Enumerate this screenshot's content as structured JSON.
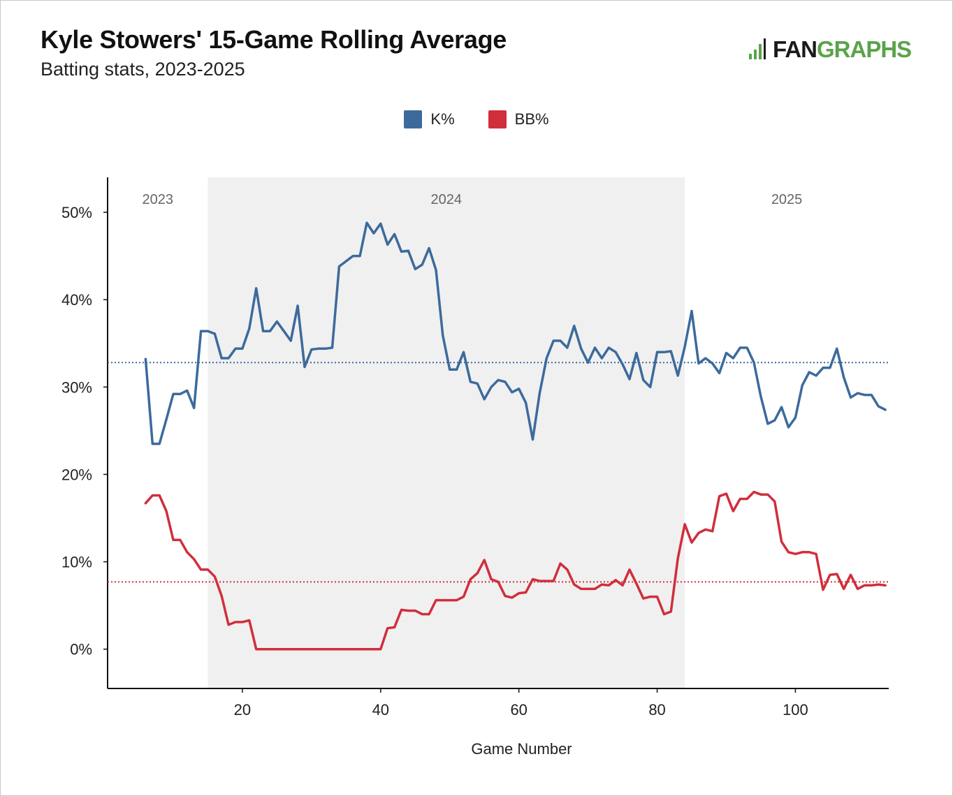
{
  "header": {
    "title": "Kyle Stowers' 15-Game Rolling Average",
    "subtitle": "Batting stats, 2023-2025",
    "logo_part1": "FAN",
    "logo_part2": "GRAPHS"
  },
  "colors": {
    "k_pct": "#3c6a9c",
    "bb_pct": "#d12e3b",
    "logo_green": "#5aa34a",
    "season_shade": "#f0f0f0"
  },
  "chart_data": {
    "type": "line",
    "title": "Kyle Stowers' 15-Game Rolling Average",
    "subtitle": "Batting stats, 2023-2025",
    "xlabel": "Game Number",
    "ylabel": "",
    "xlim": [
      0.5,
      113.5
    ],
    "ylim": [
      -4.5,
      54
    ],
    "x_ticks": [
      20,
      40,
      60,
      80,
      100
    ],
    "y_ticks": [
      0,
      10,
      20,
      30,
      40,
      50
    ],
    "y_tick_labels": [
      "0%",
      "10%",
      "20%",
      "30%",
      "40%",
      "50%"
    ],
    "legend_position": "top-center",
    "grid": false,
    "seasons": [
      {
        "label": "2023",
        "start": 0.5,
        "end": 15,
        "shaded": false
      },
      {
        "label": "2024",
        "start": 15,
        "end": 84,
        "shaded": true
      },
      {
        "label": "2025",
        "start": 84,
        "end": 113.5,
        "shaded": false
      }
    ],
    "x": [
      6,
      7,
      8,
      9,
      10,
      11,
      12,
      13,
      14,
      15,
      16,
      17,
      18,
      19,
      20,
      21,
      22,
      23,
      24,
      25,
      26,
      27,
      28,
      29,
      30,
      31,
      32,
      33,
      34,
      35,
      36,
      37,
      38,
      39,
      40,
      41,
      42,
      43,
      44,
      45,
      46,
      47,
      48,
      49,
      50,
      51,
      52,
      53,
      54,
      55,
      56,
      57,
      58,
      59,
      60,
      61,
      62,
      63,
      64,
      65,
      66,
      67,
      68,
      69,
      70,
      71,
      72,
      73,
      74,
      75,
      76,
      77,
      78,
      79,
      80,
      81,
      82,
      83,
      84,
      85,
      86,
      87,
      88,
      89,
      90,
      91,
      92,
      93,
      94,
      95,
      96,
      97,
      98,
      99,
      100,
      101,
      102,
      103,
      104,
      105,
      106,
      107,
      108,
      109,
      110,
      111,
      112,
      113
    ],
    "series": [
      {
        "name": "K%",
        "color": "#3c6a9c",
        "average": 32.8,
        "values": [
          33.2,
          23.5,
          23.5,
          26.3,
          29.2,
          29.2,
          29.6,
          27.6,
          36.4,
          36.4,
          36.1,
          33.3,
          33.3,
          34.4,
          34.4,
          36.7,
          41.3,
          36.4,
          36.4,
          37.5,
          36.4,
          35.3,
          39.3,
          32.3,
          34.3,
          34.4,
          34.4,
          34.5,
          43.8,
          44.4,
          45.0,
          45.0,
          48.8,
          47.6,
          48.7,
          46.3,
          47.5,
          45.5,
          45.6,
          43.5,
          44.0,
          45.9,
          43.4,
          35.9,
          32.0,
          32.0,
          34.0,
          30.6,
          30.4,
          28.6,
          30.0,
          30.8,
          30.6,
          29.4,
          29.8,
          28.2,
          24.0,
          29.3,
          33.3,
          35.3,
          35.3,
          34.5,
          37.0,
          34.4,
          32.8,
          34.5,
          33.3,
          34.5,
          34.0,
          32.6,
          30.9,
          33.9,
          30.8,
          30.0,
          34.0,
          34.0,
          34.1,
          31.3,
          34.6,
          38.7,
          32.7,
          33.3,
          32.7,
          31.6,
          33.9,
          33.3,
          34.5,
          34.5,
          32.8,
          28.9,
          25.8,
          26.2,
          27.7,
          25.4,
          26.5,
          30.2,
          31.7,
          31.3,
          32.2,
          32.2,
          34.4,
          31.1,
          28.8,
          29.3,
          29.1,
          29.1,
          27.8,
          27.4
        ]
      },
      {
        "name": "BB%",
        "color": "#d12e3b",
        "average": 7.7,
        "values": [
          16.7,
          17.6,
          17.6,
          15.8,
          12.5,
          12.5,
          11.1,
          10.3,
          9.1,
          9.1,
          8.3,
          6.1,
          2.8,
          3.1,
          3.1,
          3.3,
          0.0,
          0.0,
          0.0,
          0.0,
          0.0,
          0.0,
          0.0,
          0.0,
          0.0,
          0.0,
          0.0,
          0.0,
          0.0,
          0.0,
          0.0,
          0.0,
          0.0,
          0.0,
          0.0,
          2.4,
          2.5,
          4.5,
          4.4,
          4.4,
          4.0,
          4.0,
          5.6,
          5.6,
          5.6,
          5.6,
          6.0,
          8.0,
          8.7,
          10.2,
          8.0,
          7.7,
          6.1,
          5.9,
          6.4,
          6.5,
          8.0,
          7.8,
          7.8,
          7.8,
          9.8,
          9.1,
          7.4,
          6.9,
          6.9,
          6.9,
          7.4,
          7.3,
          7.9,
          7.3,
          9.1,
          7.5,
          5.8,
          6.0,
          6.0,
          4.0,
          4.3,
          10.4,
          14.3,
          12.2,
          13.3,
          13.7,
          13.5,
          17.5,
          17.8,
          15.8,
          17.2,
          17.2,
          18.0,
          17.7,
          17.7,
          16.9,
          12.3,
          11.1,
          10.9,
          11.1,
          11.1,
          10.9,
          6.8,
          8.5,
          8.6,
          6.9,
          8.5,
          6.9,
          7.3,
          7.3,
          7.4,
          7.3
        ]
      }
    ]
  }
}
